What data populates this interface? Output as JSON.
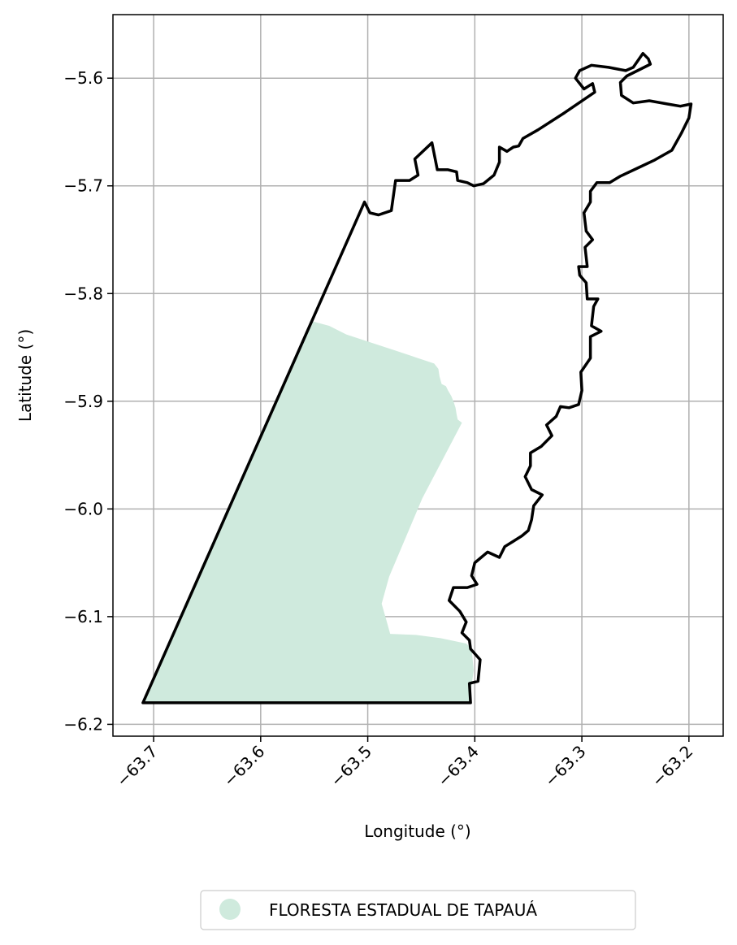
{
  "chart_data": {
    "type": "map",
    "xlabel": "Longitude (°)",
    "ylabel": "Latitude (°)",
    "xlim": [
      -63.738,
      -63.168
    ],
    "ylim": [
      -6.211,
      -5.541
    ],
    "xticks": [
      -63.7,
      -63.6,
      -63.5,
      -63.4,
      -63.3,
      -63.2
    ],
    "xtick_labels": [
      "−63.7",
      "−63.6",
      "−63.5",
      "−63.4",
      "−63.3",
      "−63.2"
    ],
    "yticks": [
      -5.6,
      -5.7,
      -5.8,
      -5.9,
      -6.0,
      -6.1,
      -6.2
    ],
    "ytick_labels": [
      "−5.6",
      "−5.7",
      "−5.8",
      "−5.9",
      "−6.0",
      "−6.1",
      "−6.2"
    ],
    "grid": true,
    "legend_position": "bottom-center",
    "legend": [
      {
        "label": "FLORESTA ESTADUAL DE TAPAUÁ",
        "color": "#cfeadd"
      }
    ],
    "layers": [
      {
        "kind": "filled-polygon",
        "name": "FLORESTA ESTADUAL DE TAPAUÁ",
        "color": "#cfeadd",
        "lonlat": [
          [
            -63.551,
            -5.826
          ],
          [
            -63.536,
            -5.83
          ],
          [
            -63.52,
            -5.838
          ],
          [
            -63.474,
            -5.853
          ],
          [
            -63.438,
            -5.865
          ],
          [
            -63.434,
            -5.87
          ],
          [
            -63.433,
            -5.877
          ],
          [
            -63.431,
            -5.884
          ],
          [
            -63.427,
            -5.886
          ],
          [
            -63.425,
            -5.89
          ],
          [
            -63.422,
            -5.895
          ],
          [
            -63.42,
            -5.9
          ],
          [
            -63.418,
            -5.906
          ],
          [
            -63.417,
            -5.912
          ],
          [
            -63.416,
            -5.917
          ],
          [
            -63.412,
            -5.92
          ],
          [
            -63.449,
            -5.99
          ],
          [
            -63.48,
            -6.063
          ],
          [
            -63.487,
            -6.088
          ],
          [
            -63.483,
            -6.102
          ],
          [
            -63.479,
            -6.116
          ],
          [
            -63.455,
            -6.117
          ],
          [
            -63.432,
            -6.12
          ],
          [
            -63.408,
            -6.125
          ],
          [
            -63.403,
            -6.13
          ],
          [
            -63.401,
            -6.15
          ],
          [
            -63.404,
            -6.17
          ],
          [
            -63.404,
            -6.18
          ],
          [
            -63.71,
            -6.18
          ]
        ]
      },
      {
        "kind": "outline",
        "name": "boundary",
        "color": "#000000",
        "lonlat": [
          [
            -63.71,
            -6.18
          ],
          [
            -63.503,
            -5.715
          ],
          [
            -63.498,
            -5.725
          ],
          [
            -63.49,
            -5.727
          ],
          [
            -63.478,
            -5.723
          ],
          [
            -63.474,
            -5.695
          ],
          [
            -63.461,
            -5.695
          ],
          [
            -63.453,
            -5.69
          ],
          [
            -63.456,
            -5.675
          ],
          [
            -63.44,
            -5.66
          ],
          [
            -63.435,
            -5.685
          ],
          [
            -63.425,
            -5.685
          ],
          [
            -63.417,
            -5.687
          ],
          [
            -63.416,
            -5.695
          ],
          [
            -63.407,
            -5.697
          ],
          [
            -63.401,
            -5.7
          ],
          [
            -63.392,
            -5.698
          ],
          [
            -63.382,
            -5.69
          ],
          [
            -63.377,
            -5.678
          ],
          [
            -63.377,
            -5.664
          ],
          [
            -63.37,
            -5.668
          ],
          [
            -63.364,
            -5.664
          ],
          [
            -63.359,
            -5.663
          ],
          [
            -63.355,
            -5.656
          ],
          [
            -63.341,
            -5.648
          ],
          [
            -63.316,
            -5.632
          ],
          [
            -63.288,
            -5.613
          ],
          [
            -63.29,
            -5.605
          ],
          [
            -63.298,
            -5.61
          ],
          [
            -63.306,
            -5.6
          ],
          [
            -63.302,
            -5.593
          ],
          [
            -63.291,
            -5.588
          ],
          [
            -63.275,
            -5.59
          ],
          [
            -63.259,
            -5.593
          ],
          [
            -63.252,
            -5.59
          ],
          [
            -63.243,
            -5.577
          ],
          [
            -63.238,
            -5.582
          ],
          [
            -63.236,
            -5.587
          ],
          [
            -63.258,
            -5.598
          ],
          [
            -63.264,
            -5.604
          ],
          [
            -63.263,
            -5.616
          ],
          [
            -63.252,
            -5.623
          ],
          [
            -63.237,
            -5.621
          ],
          [
            -63.22,
            -5.624
          ],
          [
            -63.208,
            -5.626
          ],
          [
            -63.198,
            -5.624
          ],
          [
            -63.2,
            -5.637
          ],
          [
            -63.207,
            -5.651
          ],
          [
            -63.216,
            -5.667
          ],
          [
            -63.232,
            -5.676
          ],
          [
            -63.249,
            -5.684
          ],
          [
            -63.264,
            -5.691
          ],
          [
            -63.274,
            -5.697
          ],
          [
            -63.286,
            -5.697
          ],
          [
            -63.292,
            -5.705
          ],
          [
            -63.292,
            -5.715
          ],
          [
            -63.298,
            -5.725
          ],
          [
            -63.296,
            -5.742
          ],
          [
            -63.29,
            -5.75
          ],
          [
            -63.297,
            -5.757
          ],
          [
            -63.295,
            -5.775
          ],
          [
            -63.303,
            -5.775
          ],
          [
            -63.302,
            -5.783
          ],
          [
            -63.296,
            -5.79
          ],
          [
            -63.295,
            -5.805
          ],
          [
            -63.285,
            -5.805
          ],
          [
            -63.289,
            -5.812
          ],
          [
            -63.291,
            -5.83
          ],
          [
            -63.282,
            -5.835
          ],
          [
            -63.292,
            -5.84
          ],
          [
            -63.292,
            -5.86
          ],
          [
            -63.301,
            -5.873
          ],
          [
            -63.3,
            -5.89
          ],
          [
            -63.303,
            -5.903
          ],
          [
            -63.312,
            -5.906
          ],
          [
            -63.32,
            -5.905
          ],
          [
            -63.324,
            -5.914
          ],
          [
            -63.333,
            -5.922
          ],
          [
            -63.328,
            -5.932
          ],
          [
            -63.338,
            -5.942
          ],
          [
            -63.348,
            -5.948
          ],
          [
            -63.348,
            -5.96
          ],
          [
            -63.353,
            -5.97
          ],
          [
            -63.347,
            -5.982
          ],
          [
            -63.337,
            -5.987
          ],
          [
            -63.345,
            -5.997
          ],
          [
            -63.347,
            -6.01
          ],
          [
            -63.35,
            -6.02
          ],
          [
            -63.356,
            -6.025
          ],
          [
            -63.364,
            -6.03
          ],
          [
            -63.372,
            -6.035
          ],
          [
            -63.377,
            -6.045
          ],
          [
            -63.388,
            -6.04
          ],
          [
            -63.4,
            -6.05
          ],
          [
            -63.403,
            -6.062
          ],
          [
            -63.398,
            -6.07
          ],
          [
            -63.407,
            -6.073
          ],
          [
            -63.42,
            -6.073
          ],
          [
            -63.424,
            -6.085
          ],
          [
            -63.414,
            -6.095
          ],
          [
            -63.408,
            -6.105
          ],
          [
            -63.412,
            -6.115
          ],
          [
            -63.405,
            -6.122
          ],
          [
            -63.404,
            -6.13
          ],
          [
            -63.395,
            -6.14
          ],
          [
            -63.397,
            -6.16
          ],
          [
            -63.405,
            -6.162
          ],
          [
            -63.404,
            -6.18
          ],
          [
            -63.71,
            -6.18
          ]
        ]
      }
    ]
  }
}
